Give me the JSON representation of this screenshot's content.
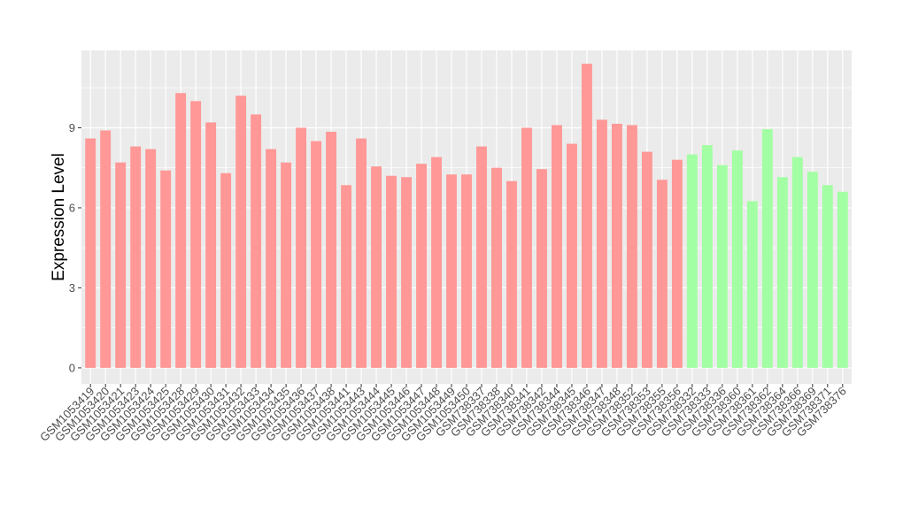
{
  "chart_data": {
    "type": "bar",
    "ylabel": "Expression Level",
    "xlabel": "",
    "ylim": [
      -0.6,
      11.9
    ],
    "yticks": [
      0,
      3,
      6,
      9
    ],
    "grid": true,
    "legend": "none",
    "colors": {
      "panel": "#EBEBEB",
      "grid": "#FFFFFF",
      "group_a": "#FF9896",
      "group_b": "#A3FFA3"
    },
    "categories": [
      "GSM1053419",
      "GSM1053420",
      "GSM1053421",
      "GSM1053423",
      "GSM1053424",
      "GSM1053425",
      "GSM1053428",
      "GSM1053429",
      "GSM1053430",
      "GSM1053431",
      "GSM1053432",
      "GSM1053433",
      "GSM1053434",
      "GSM1053435",
      "GSM1053436",
      "GSM1053437",
      "GSM1053438",
      "GSM1053441",
      "GSM1053443",
      "GSM1053444",
      "GSM1053445",
      "GSM1053446",
      "GSM1053447",
      "GSM1053448",
      "GSM1053449",
      "GSM1053450",
      "GSM738337",
      "GSM738338",
      "GSM738340",
      "GSM738341",
      "GSM738342",
      "GSM738344",
      "GSM738345",
      "GSM738346",
      "GSM738347",
      "GSM738348",
      "GSM738352",
      "GSM738353",
      "GSM738355",
      "GSM738356",
      "GSM738332",
      "GSM738333",
      "GSM738336",
      "GSM738360",
      "GSM738361",
      "GSM738362",
      "GSM738364",
      "GSM738366",
      "GSM738369",
      "GSM738371",
      "GSM738376"
    ],
    "values": [
      8.6,
      8.9,
      7.7,
      8.3,
      8.2,
      7.4,
      10.3,
      10.0,
      9.2,
      7.3,
      10.2,
      9.5,
      8.2,
      7.7,
      9.0,
      8.5,
      8.85,
      6.85,
      8.6,
      7.55,
      7.2,
      7.15,
      7.65,
      7.9,
      7.25,
      7.25,
      8.3,
      7.5,
      7.0,
      9.0,
      7.45,
      9.1,
      8.4,
      11.4,
      9.3,
      9.15,
      9.1,
      8.1,
      7.05,
      7.8,
      8.0,
      8.35,
      7.6,
      8.15,
      6.25,
      8.95,
      7.15,
      7.9,
      7.35,
      6.85,
      6.6
    ],
    "groups": [
      "a",
      "a",
      "a",
      "a",
      "a",
      "a",
      "a",
      "a",
      "a",
      "a",
      "a",
      "a",
      "a",
      "a",
      "a",
      "a",
      "a",
      "a",
      "a",
      "a",
      "a",
      "a",
      "a",
      "a",
      "a",
      "a",
      "a",
      "a",
      "a",
      "a",
      "a",
      "a",
      "a",
      "a",
      "a",
      "a",
      "a",
      "a",
      "a",
      "a",
      "b",
      "b",
      "b",
      "b",
      "b",
      "b",
      "b",
      "b",
      "b",
      "b",
      "b"
    ]
  }
}
